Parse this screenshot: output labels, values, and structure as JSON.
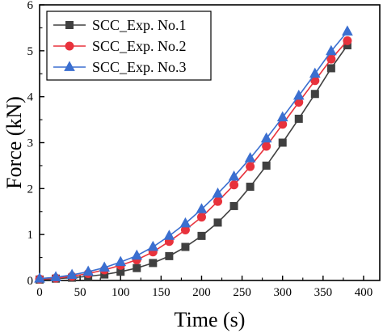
{
  "chart_data": {
    "type": "line",
    "xlabel": "Time (s)",
    "ylabel": "Force (kN)",
    "xlim": [
      0,
      420
    ],
    "ylim": [
      0,
      6
    ],
    "xticks": [
      0,
      50,
      100,
      150,
      200,
      250,
      300,
      350,
      400
    ],
    "yticks": [
      0,
      1,
      2,
      3,
      4,
      5,
      6
    ],
    "grid": false,
    "legend_position": "top-left",
    "x": [
      0,
      20,
      40,
      60,
      80,
      100,
      120,
      140,
      160,
      180,
      200,
      220,
      240,
      260,
      280,
      300,
      320,
      340,
      360,
      380
    ],
    "series": [
      {
        "name": "SCC_Exp. No.1",
        "color": "#404040",
        "marker": "square",
        "values": [
          0.02,
          0.04,
          0.06,
          0.09,
          0.13,
          0.19,
          0.27,
          0.38,
          0.53,
          0.73,
          0.97,
          1.26,
          1.62,
          2.04,
          2.5,
          3.0,
          3.52,
          4.06,
          4.62,
          5.12
        ]
      },
      {
        "name": "SCC_Exp. No.2",
        "color": "#e8323c",
        "marker": "circle",
        "values": [
          0.03,
          0.05,
          0.09,
          0.15,
          0.23,
          0.33,
          0.45,
          0.62,
          0.85,
          1.1,
          1.38,
          1.72,
          2.08,
          2.48,
          2.92,
          3.4,
          3.88,
          4.35,
          4.82,
          5.22
        ]
      },
      {
        "name": "SCC_Exp. No.3",
        "color": "#3b6fd0",
        "marker": "triangle",
        "values": [
          0.04,
          0.07,
          0.12,
          0.19,
          0.28,
          0.4,
          0.54,
          0.73,
          0.97,
          1.24,
          1.55,
          1.89,
          2.26,
          2.66,
          3.09,
          3.55,
          4.02,
          4.5,
          4.99,
          5.42
        ]
      }
    ]
  }
}
